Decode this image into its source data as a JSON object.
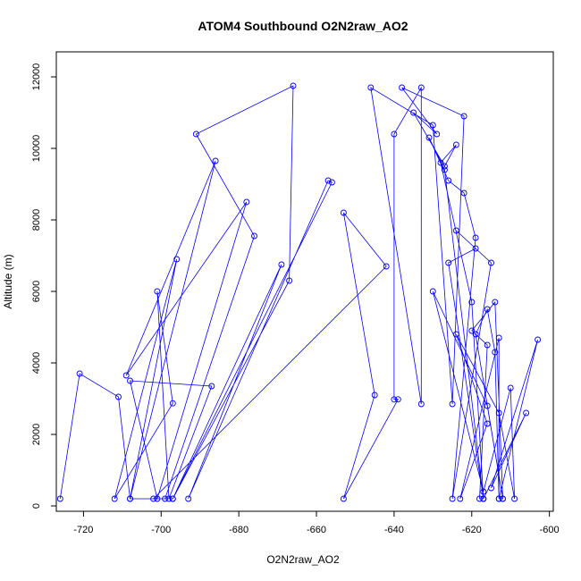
{
  "chart_data": {
    "type": "line",
    "title": "ATOM4 Southbound O2N2raw_AO2",
    "xlabel": "O2N2raw_AO2",
    "ylabel": "Altitude (m)",
    "xlim": [
      -727,
      -599
    ],
    "ylim": [
      -150,
      12700
    ],
    "xticks": [
      -720,
      -700,
      -680,
      -660,
      -640,
      -620,
      -600
    ],
    "yticks": [
      0,
      2000,
      4000,
      6000,
      8000,
      10000,
      12000
    ],
    "grid": false,
    "legend": "none",
    "marker": "open-circle",
    "color": "#0000ff",
    "series": [
      {
        "x": [
          -726,
          -721,
          -711,
          -708,
          -696,
          -712,
          -697,
          -701,
          -698,
          -687,
          -708,
          -701,
          -678,
          -709,
          -686,
          -708,
          -699,
          -676,
          -691,
          -666,
          -667,
          -697,
          -669,
          -693,
          -657,
          -656,
          -697,
          -702,
          -642,
          -653,
          -645,
          -653,
          -639,
          -640,
          -640,
          -633,
          -633,
          -646,
          -630,
          -625,
          -622,
          -638,
          -629,
          -635,
          -627,
          -624,
          -628,
          -620,
          -617,
          -627,
          -631,
          -626,
          -622,
          -619,
          -625,
          -615,
          -624,
          -619,
          -626,
          -617,
          -618,
          -616,
          -620,
          -614,
          -612,
          -619,
          -616,
          -614,
          -613,
          -613,
          -623,
          -616,
          -624,
          -613,
          -609,
          -610,
          -617,
          -630,
          -616,
          -612,
          -613,
          -603,
          -615,
          -606,
          -617
        ],
        "y": [
          200,
          3700,
          3050,
          200,
          6900,
          200,
          2870,
          6000,
          200,
          3350,
          3500,
          200,
          8500,
          3650,
          9650,
          200,
          200,
          7550,
          10400,
          11750,
          6300,
          200,
          6750,
          200,
          9100,
          9050,
          200,
          200,
          6700,
          8200,
          3100,
          200,
          2980,
          2980,
          10400,
          11700,
          2850,
          11700,
          10650,
          2850,
          10900,
          11700,
          10400,
          11000,
          9500,
          10100,
          9600,
          5700,
          200,
          9400,
          10300,
          9100,
          8750,
          7500,
          200,
          6800,
          7700,
          7200,
          6800,
          200,
          200,
          4500,
          4900,
          5700,
          200,
          4800,
          5500,
          4300,
          200,
          4700,
          200,
          2300,
          4800,
          2600,
          200,
          3300,
          400,
          6000,
          2800,
          200,
          200,
          4650,
          500,
          2600,
          200
        ]
      }
    ]
  }
}
